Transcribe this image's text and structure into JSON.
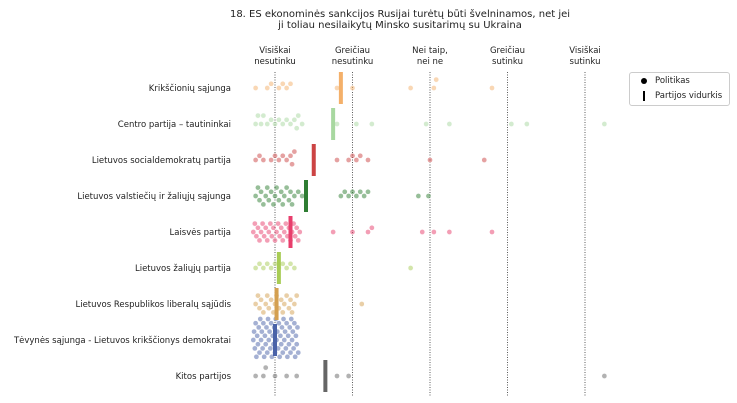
{
  "chart_data": {
    "type": "swarm",
    "title_lines": [
      "18. ES ekonominės sankcijos Rusijai turėtų būti švelninamos, net jei",
      "ji toliau nesilaikytų Minsko susitarimų su Ukraina"
    ],
    "scale": [
      {
        "value": 1,
        "label": [
          "Visiškai",
          "nesutinku"
        ]
      },
      {
        "value": 2,
        "label": [
          "Greičiau",
          "nesutinku"
        ]
      },
      {
        "value": 3,
        "label": [
          "Nei taip,",
          "nei ne"
        ]
      },
      {
        "value": 4,
        "label": [
          "Greičiau",
          "sutinku"
        ]
      },
      {
        "value": 5,
        "label": [
          "Visiškai",
          "sutinku"
        ]
      }
    ],
    "xlim": [
      0.7,
      5.3
    ],
    "legend": {
      "politician": "Politikas",
      "mean": "Partijos vidurkis"
    },
    "parties": [
      {
        "name": "Krikščionių sąjunga",
        "color": "#f4b06a",
        "mean": 1.85,
        "points": [
          0.75,
          0.9,
          0.95,
          1.05,
          1.1,
          1.15,
          1.2,
          1.8,
          2.0,
          2.75,
          3.05,
          3.08,
          3.8
        ]
      },
      {
        "name": "Centro partija – tautininkai",
        "color": "#a8d8a0",
        "mean": 1.75,
        "points": [
          0.75,
          0.78,
          0.82,
          0.85,
          0.9,
          0.95,
          1.0,
          1.05,
          1.1,
          1.15,
          1.2,
          1.25,
          1.28,
          1.3,
          1.35,
          1.8,
          2.05,
          2.25,
          2.95,
          3.25,
          4.05,
          4.25,
          5.25
        ]
      },
      {
        "name": "Lietuvos socialdemokratų partija",
        "color": "#cc4444",
        "mean": 1.5,
        "points": [
          0.75,
          0.8,
          0.85,
          0.95,
          1.0,
          1.05,
          1.1,
          1.15,
          1.2,
          1.22,
          1.25,
          1.8,
          1.95,
          2.0,
          2.05,
          2.1,
          2.2,
          3.0,
          3.7
        ]
      },
      {
        "name": "Lietuvos valstiečių ir žaliųjų sąjunga",
        "color": "#2e7d32",
        "mean": 1.4,
        "points": [
          0.75,
          0.78,
          0.8,
          0.82,
          0.85,
          0.88,
          0.9,
          0.92,
          0.95,
          0.98,
          1.0,
          1.02,
          1.05,
          1.08,
          1.1,
          1.12,
          1.15,
          1.18,
          1.2,
          1.22,
          1.25,
          1.3,
          1.35,
          1.85,
          1.9,
          1.95,
          2.0,
          2.05,
          2.1,
          2.15,
          2.2,
          2.85,
          2.98
        ]
      },
      {
        "name": "Laisvės partija",
        "color": "#e83e6c",
        "mean": 1.2,
        "points": [
          0.72,
          0.74,
          0.76,
          0.78,
          0.8,
          0.82,
          0.84,
          0.86,
          0.88,
          0.9,
          0.92,
          0.94,
          0.96,
          0.98,
          1.0,
          1.02,
          1.04,
          1.06,
          1.08,
          1.1,
          1.12,
          1.14,
          1.16,
          1.18,
          1.2,
          1.22,
          1.24,
          1.26,
          1.28,
          1.3,
          1.32,
          1.75,
          2.0,
          2.2,
          2.25,
          2.9,
          3.05,
          3.25,
          3.8
        ]
      },
      {
        "name": "Lietuvos žaliųjų partija",
        "color": "#a8cc55",
        "mean": 1.05,
        "points": [
          0.75,
          0.8,
          0.85,
          0.9,
          0.95,
          1.0,
          1.05,
          1.1,
          1.15,
          1.2,
          1.25,
          2.75
        ]
      },
      {
        "name": "Lietuvos Respublikos liberalų sąjūdis",
        "color": "#d4a050",
        "mean": 1.02,
        "points": [
          0.75,
          0.78,
          0.8,
          0.82,
          0.85,
          0.88,
          0.9,
          0.92,
          0.95,
          0.98,
          1.0,
          1.02,
          1.05,
          1.08,
          1.1,
          1.12,
          1.15,
          1.18,
          1.2,
          1.22,
          1.25,
          1.28,
          2.12
        ]
      },
      {
        "name": "Tėvynės sąjunga - Lietuvos krikščionys demokratai",
        "color": "#4a62a8",
        "mean": 1.0,
        "points": [
          0.72,
          0.73,
          0.74,
          0.75,
          0.76,
          0.77,
          0.78,
          0.79,
          0.8,
          0.81,
          0.82,
          0.83,
          0.84,
          0.85,
          0.86,
          0.87,
          0.88,
          0.89,
          0.9,
          0.91,
          0.92,
          0.93,
          0.94,
          0.95,
          0.96,
          0.97,
          0.98,
          0.99,
          1.0,
          1.01,
          1.02,
          1.03,
          1.04,
          1.05,
          1.06,
          1.07,
          1.08,
          1.09,
          1.1,
          1.11,
          1.12,
          1.13,
          1.14,
          1.15,
          1.16,
          1.17,
          1.18,
          1.19,
          1.2,
          1.21,
          1.22,
          1.23,
          1.24,
          1.25,
          1.26,
          1.27,
          1.28,
          1.29,
          1.3
        ]
      },
      {
        "name": "Kitos partijos",
        "color": "#666666",
        "mean": 1.65,
        "points": [
          0.75,
          0.85,
          0.88,
          1.0,
          1.15,
          1.28,
          1.8,
          1.95,
          5.25
        ]
      }
    ]
  }
}
